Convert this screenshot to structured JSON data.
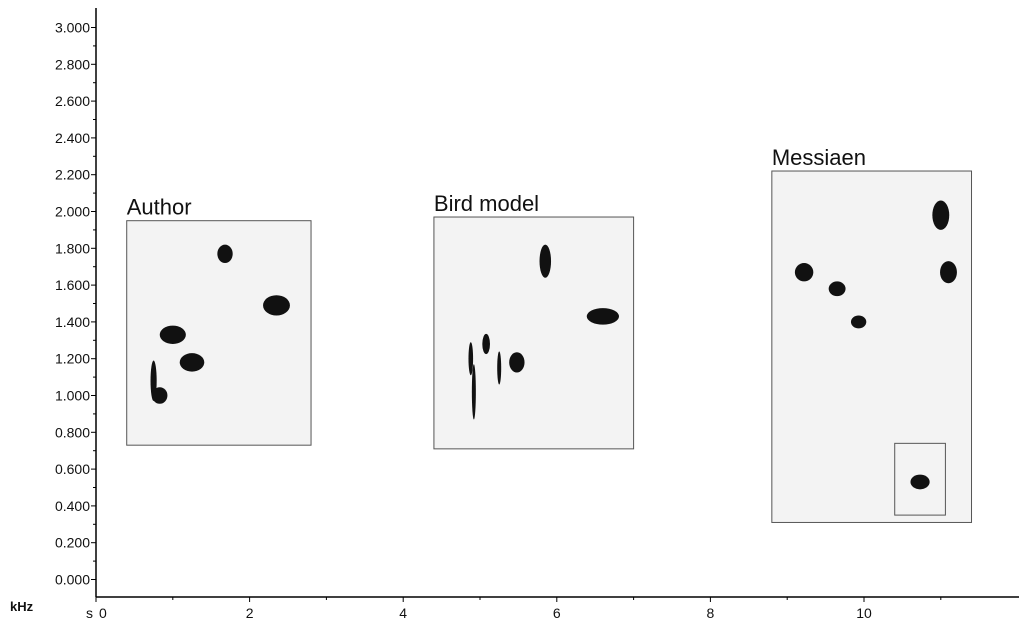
{
  "chart_data": {
    "type": "scatter",
    "x_axis": {
      "unit_label": "s",
      "range": [
        0,
        12
      ],
      "ticks": [
        0,
        2,
        4,
        6,
        8,
        10
      ],
      "tick_labels": [
        "0",
        "2",
        "4",
        "6",
        "8",
        "10"
      ]
    },
    "y_axis": {
      "unit_label": "kHz",
      "range": [
        0,
        3.1
      ],
      "ticks": [
        0,
        0.2,
        0.4,
        0.6,
        0.8,
        1.0,
        1.2,
        1.4,
        1.6,
        1.8,
        2.0,
        2.2,
        2.4,
        2.6,
        2.8,
        3.0
      ],
      "tick_labels": [
        "0.000",
        "0.200",
        "0.400",
        "0.600",
        "0.800",
        "1.000",
        "1.200",
        "1.400",
        "1.600",
        "1.800",
        "2.000",
        "2.200",
        "2.400",
        "2.600",
        "2.800",
        "3.000"
      ]
    },
    "grid": false,
    "groups": [
      {
        "label": "Author",
        "box": {
          "x": [
            0.4,
            2.8
          ],
          "y": [
            0.73,
            1.95
          ]
        },
        "notes": [
          {
            "x": 0.75,
            "y": 1.08,
            "dx": 0.08,
            "dy": 0.22
          },
          {
            "x": 0.83,
            "y": 1.0,
            "dx": 0.2,
            "dy": 0.09
          },
          {
            "x": 1.0,
            "y": 1.33,
            "dx": 0.34,
            "dy": 0.1
          },
          {
            "x": 1.25,
            "y": 1.18,
            "dx": 0.32,
            "dy": 0.1
          },
          {
            "x": 1.68,
            "y": 1.77,
            "dx": 0.2,
            "dy": 0.1
          },
          {
            "x": 2.35,
            "y": 1.49,
            "dx": 0.35,
            "dy": 0.11
          }
        ]
      },
      {
        "label": "Bird model",
        "box": {
          "x": [
            4.4,
            7.0
          ],
          "y": [
            0.71,
            1.97
          ]
        },
        "notes": [
          {
            "x": 4.88,
            "y": 1.2,
            "dx": 0.06,
            "dy": 0.18
          },
          {
            "x": 4.92,
            "y": 1.02,
            "dx": 0.03,
            "dy": 0.3
          },
          {
            "x": 5.08,
            "y": 1.28,
            "dx": 0.1,
            "dy": 0.11
          },
          {
            "x": 5.25,
            "y": 1.15,
            "dx": 0.05,
            "dy": 0.18
          },
          {
            "x": 5.48,
            "y": 1.18,
            "dx": 0.2,
            "dy": 0.11
          },
          {
            "x": 5.85,
            "y": 1.73,
            "dx": 0.15,
            "dy": 0.18
          },
          {
            "x": 6.6,
            "y": 1.43,
            "dx": 0.42,
            "dy": 0.09
          }
        ]
      },
      {
        "label": "Messiaen",
        "box": {
          "x": [
            8.8,
            11.4
          ],
          "y": [
            0.31,
            2.22
          ]
        },
        "inset": {
          "x": [
            10.4,
            11.06
          ],
          "y": [
            0.35,
            0.74
          ]
        },
        "notes": [
          {
            "x": 9.22,
            "y": 1.67,
            "dx": 0.24,
            "dy": 0.1
          },
          {
            "x": 9.65,
            "y": 1.58,
            "dx": 0.22,
            "dy": 0.08
          },
          {
            "x": 9.93,
            "y": 1.4,
            "dx": 0.2,
            "dy": 0.07
          },
          {
            "x": 11.0,
            "y": 1.98,
            "dx": 0.22,
            "dy": 0.16
          },
          {
            "x": 11.1,
            "y": 1.67,
            "dx": 0.22,
            "dy": 0.12
          },
          {
            "x": 10.73,
            "y": 0.53,
            "dx": 0.25,
            "dy": 0.08
          }
        ]
      }
    ]
  }
}
